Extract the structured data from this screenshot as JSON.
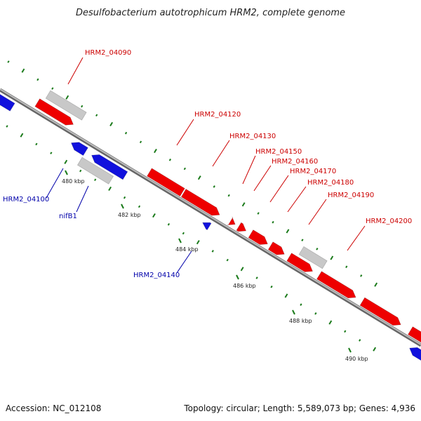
{
  "header": {
    "title": "Desulfobacterium autotrophicum HRM2, complete genome"
  },
  "footer": {
    "accession": "Accession: NC_012108",
    "topology": "Topology: circular; Length: 5,589,073 bp; Genes: 4,936"
  },
  "colors": {
    "forward_gene": "#ee0000",
    "reverse_gene": "#1111dd",
    "other_feature": "#c8c8c8",
    "backbone": "#888888",
    "gc_ticks": "#1a7a1a",
    "forward_label": "#cc0000",
    "reverse_label": "#0000aa"
  },
  "scale": {
    "ticks": [
      {
        "label": "480 kbp"
      },
      {
        "label": "482 kbp"
      },
      {
        "label": "484 kbp"
      },
      {
        "label": "486 kbp"
      },
      {
        "label": "488 kbp"
      },
      {
        "label": "490 kbp"
      }
    ]
  },
  "gene_labels": [
    {
      "text": "HRM2_04090",
      "strand": "forward"
    },
    {
      "text": "HRM2_04120",
      "strand": "forward"
    },
    {
      "text": "HRM2_04130",
      "strand": "forward"
    },
    {
      "text": "HRM2_04150",
      "strand": "forward"
    },
    {
      "text": "HRM2_04160",
      "strand": "forward"
    },
    {
      "text": "HRM2_04170",
      "strand": "forward"
    },
    {
      "text": "HRM2_04180",
      "strand": "forward"
    },
    {
      "text": "HRM2_04190",
      "strand": "forward"
    },
    {
      "text": "HRM2_04200",
      "strand": "forward"
    },
    {
      "text": "HRM2_04100",
      "strand": "reverse"
    },
    {
      "text": "nifB1",
      "strand": "reverse"
    },
    {
      "text": "HRM2_04140",
      "strand": "reverse"
    }
  ]
}
